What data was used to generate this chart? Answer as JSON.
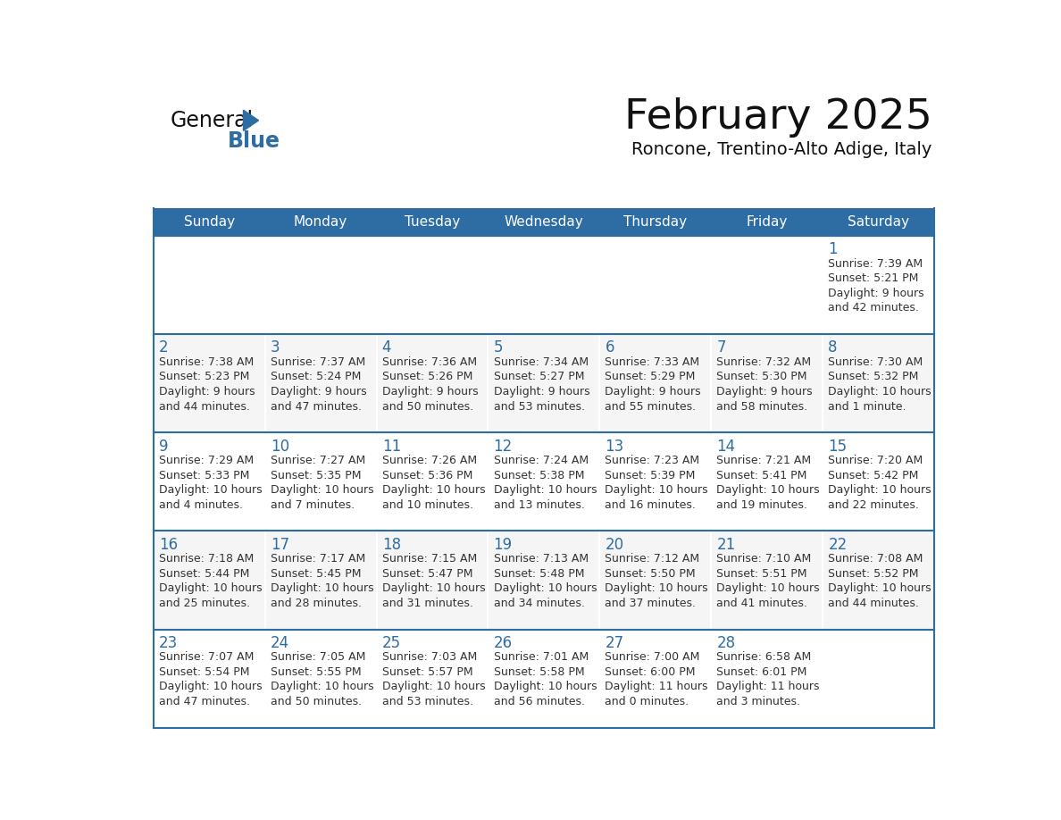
{
  "title": "February 2025",
  "subtitle": "Roncone, Trentino-Alto Adige, Italy",
  "days_of_week": [
    "Sunday",
    "Monday",
    "Tuesday",
    "Wednesday",
    "Thursday",
    "Friday",
    "Saturday"
  ],
  "header_bg": "#2E6DA4",
  "header_text": "#FFFFFF",
  "cell_bg_light": "#F5F5F5",
  "cell_bg_white": "#FFFFFF",
  "border_color": "#2E6DA4",
  "day_num_color": "#2E6DA4",
  "text_color": "#333333",
  "logo_general_color": "#111111",
  "logo_blue_color": "#2E6DA4",
  "calendar_data": [
    [
      {
        "day": null,
        "info": null
      },
      {
        "day": null,
        "info": null
      },
      {
        "day": null,
        "info": null
      },
      {
        "day": null,
        "info": null
      },
      {
        "day": null,
        "info": null
      },
      {
        "day": null,
        "info": null
      },
      {
        "day": 1,
        "info": "Sunrise: 7:39 AM\nSunset: 5:21 PM\nDaylight: 9 hours\nand 42 minutes."
      }
    ],
    [
      {
        "day": 2,
        "info": "Sunrise: 7:38 AM\nSunset: 5:23 PM\nDaylight: 9 hours\nand 44 minutes."
      },
      {
        "day": 3,
        "info": "Sunrise: 7:37 AM\nSunset: 5:24 PM\nDaylight: 9 hours\nand 47 minutes."
      },
      {
        "day": 4,
        "info": "Sunrise: 7:36 AM\nSunset: 5:26 PM\nDaylight: 9 hours\nand 50 minutes."
      },
      {
        "day": 5,
        "info": "Sunrise: 7:34 AM\nSunset: 5:27 PM\nDaylight: 9 hours\nand 53 minutes."
      },
      {
        "day": 6,
        "info": "Sunrise: 7:33 AM\nSunset: 5:29 PM\nDaylight: 9 hours\nand 55 minutes."
      },
      {
        "day": 7,
        "info": "Sunrise: 7:32 AM\nSunset: 5:30 PM\nDaylight: 9 hours\nand 58 minutes."
      },
      {
        "day": 8,
        "info": "Sunrise: 7:30 AM\nSunset: 5:32 PM\nDaylight: 10 hours\nand 1 minute."
      }
    ],
    [
      {
        "day": 9,
        "info": "Sunrise: 7:29 AM\nSunset: 5:33 PM\nDaylight: 10 hours\nand 4 minutes."
      },
      {
        "day": 10,
        "info": "Sunrise: 7:27 AM\nSunset: 5:35 PM\nDaylight: 10 hours\nand 7 minutes."
      },
      {
        "day": 11,
        "info": "Sunrise: 7:26 AM\nSunset: 5:36 PM\nDaylight: 10 hours\nand 10 minutes."
      },
      {
        "day": 12,
        "info": "Sunrise: 7:24 AM\nSunset: 5:38 PM\nDaylight: 10 hours\nand 13 minutes."
      },
      {
        "day": 13,
        "info": "Sunrise: 7:23 AM\nSunset: 5:39 PM\nDaylight: 10 hours\nand 16 minutes."
      },
      {
        "day": 14,
        "info": "Sunrise: 7:21 AM\nSunset: 5:41 PM\nDaylight: 10 hours\nand 19 minutes."
      },
      {
        "day": 15,
        "info": "Sunrise: 7:20 AM\nSunset: 5:42 PM\nDaylight: 10 hours\nand 22 minutes."
      }
    ],
    [
      {
        "day": 16,
        "info": "Sunrise: 7:18 AM\nSunset: 5:44 PM\nDaylight: 10 hours\nand 25 minutes."
      },
      {
        "day": 17,
        "info": "Sunrise: 7:17 AM\nSunset: 5:45 PM\nDaylight: 10 hours\nand 28 minutes."
      },
      {
        "day": 18,
        "info": "Sunrise: 7:15 AM\nSunset: 5:47 PM\nDaylight: 10 hours\nand 31 minutes."
      },
      {
        "day": 19,
        "info": "Sunrise: 7:13 AM\nSunset: 5:48 PM\nDaylight: 10 hours\nand 34 minutes."
      },
      {
        "day": 20,
        "info": "Sunrise: 7:12 AM\nSunset: 5:50 PM\nDaylight: 10 hours\nand 37 minutes."
      },
      {
        "day": 21,
        "info": "Sunrise: 7:10 AM\nSunset: 5:51 PM\nDaylight: 10 hours\nand 41 minutes."
      },
      {
        "day": 22,
        "info": "Sunrise: 7:08 AM\nSunset: 5:52 PM\nDaylight: 10 hours\nand 44 minutes."
      }
    ],
    [
      {
        "day": 23,
        "info": "Sunrise: 7:07 AM\nSunset: 5:54 PM\nDaylight: 10 hours\nand 47 minutes."
      },
      {
        "day": 24,
        "info": "Sunrise: 7:05 AM\nSunset: 5:55 PM\nDaylight: 10 hours\nand 50 minutes."
      },
      {
        "day": 25,
        "info": "Sunrise: 7:03 AM\nSunset: 5:57 PM\nDaylight: 10 hours\nand 53 minutes."
      },
      {
        "day": 26,
        "info": "Sunrise: 7:01 AM\nSunset: 5:58 PM\nDaylight: 10 hours\nand 56 minutes."
      },
      {
        "day": 27,
        "info": "Sunrise: 7:00 AM\nSunset: 6:00 PM\nDaylight: 11 hours\nand 0 minutes."
      },
      {
        "day": 28,
        "info": "Sunrise: 6:58 AM\nSunset: 6:01 PM\nDaylight: 11 hours\nand 3 minutes."
      },
      {
        "day": null,
        "info": null
      }
    ]
  ]
}
